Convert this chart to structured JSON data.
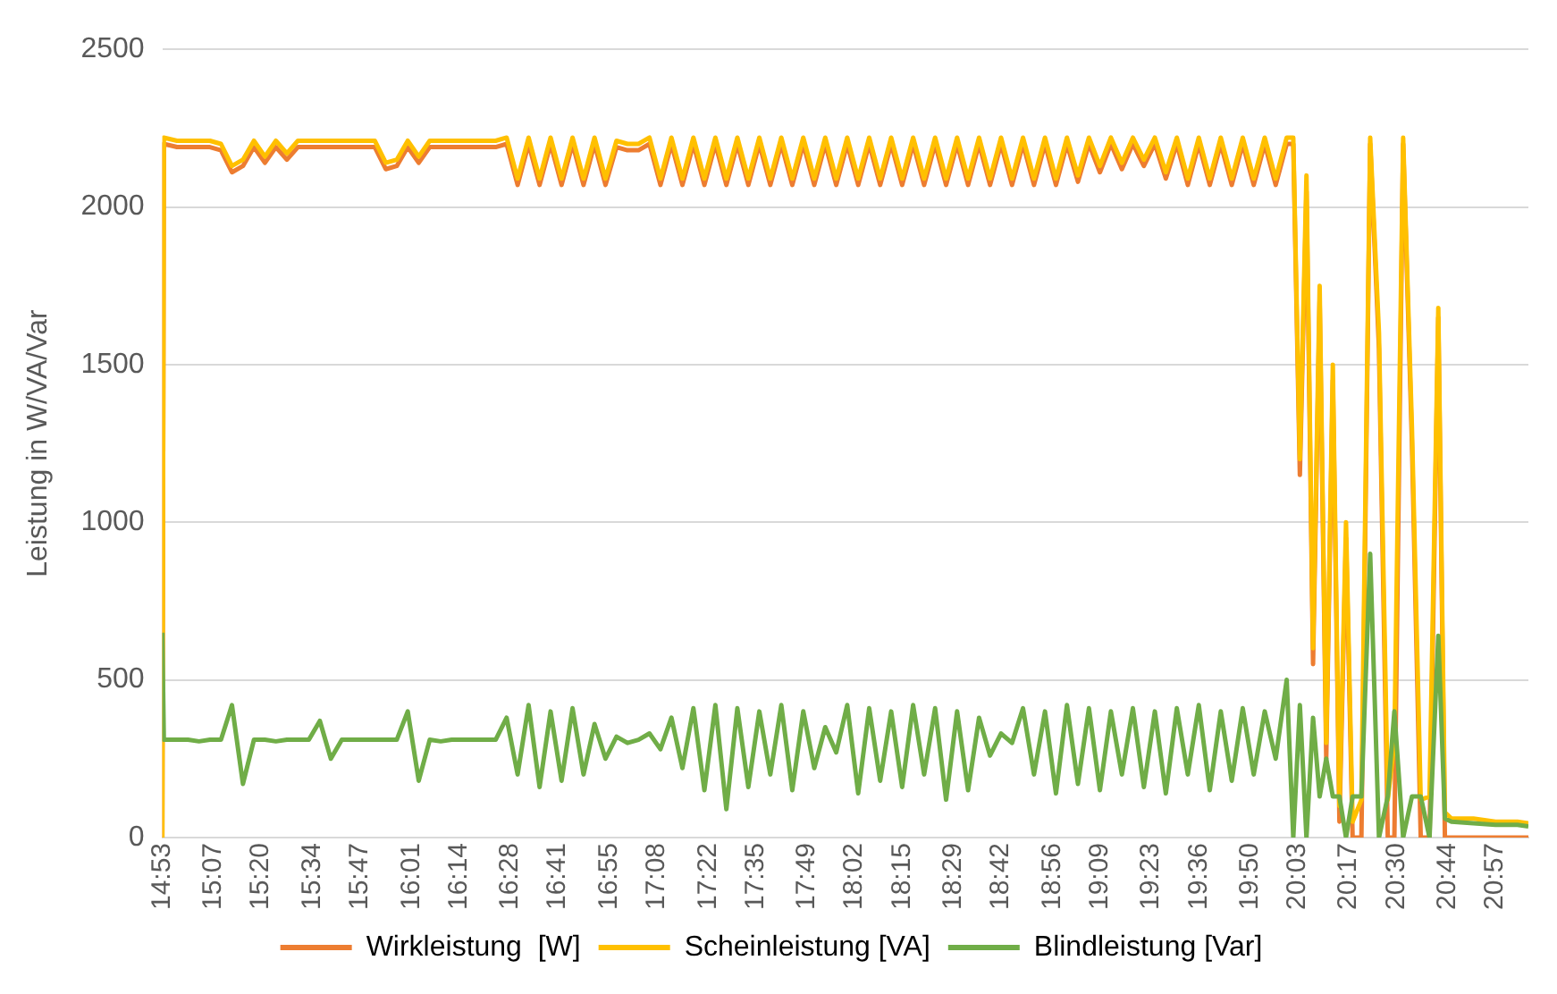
{
  "chart_data": {
    "type": "line",
    "ylabel": "Leistung in W/VA/Var",
    "x": [
      14.883,
      14.89,
      14.95,
      15.0,
      15.05,
      15.1,
      15.15,
      15.2,
      15.25,
      15.3,
      15.35,
      15.4,
      15.45,
      15.5,
      15.55,
      15.6,
      15.65,
      15.7,
      15.75,
      15.8,
      15.85,
      15.9,
      15.95,
      16.0,
      16.05,
      16.1,
      16.15,
      16.2,
      16.25,
      16.3,
      16.35,
      16.4,
      16.45,
      16.5,
      16.55,
      16.6,
      16.65,
      16.7,
      16.75,
      16.8,
      16.85,
      16.9,
      16.95,
      17.0,
      17.05,
      17.1,
      17.15,
      17.2,
      17.25,
      17.3,
      17.35,
      17.4,
      17.45,
      17.5,
      17.55,
      17.6,
      17.65,
      17.7,
      17.75,
      17.8,
      17.85,
      17.9,
      17.95,
      18.0,
      18.05,
      18.1,
      18.15,
      18.2,
      18.25,
      18.3,
      18.35,
      18.4,
      18.45,
      18.5,
      18.55,
      18.6,
      18.65,
      18.7,
      18.75,
      18.8,
      18.85,
      18.9,
      18.95,
      19.0,
      19.05,
      19.1,
      19.15,
      19.2,
      19.25,
      19.3,
      19.35,
      19.4,
      19.45,
      19.5,
      19.55,
      19.6,
      19.65,
      19.7,
      19.75,
      19.8,
      19.85,
      19.9,
      19.95,
      20.0,
      20.03,
      20.06,
      20.09,
      20.12,
      20.15,
      20.18,
      20.21,
      20.24,
      20.27,
      20.3,
      20.34,
      20.38,
      20.42,
      20.46,
      20.49,
      20.53,
      20.57,
      20.61,
      20.65,
      20.69,
      20.72,
      20.75,
      20.85,
      20.95,
      21.05,
      21.1
    ],
    "series": [
      {
        "name": "Wirkleistung  [W]",
        "color": "#ed7d31",
        "values": [
          0,
          2200,
          2190,
          2190,
          2190,
          2190,
          2180,
          2110,
          2130,
          2190,
          2140,
          2190,
          2150,
          2190,
          2190,
          2190,
          2190,
          2190,
          2190,
          2190,
          2190,
          2120,
          2130,
          2190,
          2140,
          2190,
          2190,
          2190,
          2190,
          2190,
          2190,
          2190,
          2200,
          2070,
          2200,
          2070,
          2200,
          2070,
          2200,
          2070,
          2200,
          2070,
          2190,
          2180,
          2180,
          2200,
          2070,
          2200,
          2070,
          2200,
          2070,
          2200,
          2070,
          2200,
          2070,
          2200,
          2070,
          2200,
          2070,
          2200,
          2070,
          2200,
          2070,
          2200,
          2070,
          2200,
          2070,
          2200,
          2070,
          2200,
          2070,
          2200,
          2070,
          2200,
          2070,
          2200,
          2070,
          2200,
          2070,
          2200,
          2070,
          2200,
          2070,
          2200,
          2080,
          2200,
          2110,
          2200,
          2120,
          2200,
          2130,
          2200,
          2090,
          2200,
          2070,
          2200,
          2070,
          2200,
          2070,
          2200,
          2070,
          2200,
          2070,
          2200,
          2200,
          1150,
          2050,
          550,
          1700,
          250,
          1450,
          50,
          950,
          0,
          0,
          2200,
          1550,
          0,
          0,
          2200,
          1250,
          0,
          0,
          1650,
          0,
          0,
          0,
          0,
          0,
          0
        ]
      },
      {
        "name": "Scheinleistung [VA]",
        "color": "#ffc000",
        "values": [
          0,
          2220,
          2210,
          2210,
          2210,
          2210,
          2200,
          2130,
          2150,
          2210,
          2160,
          2210,
          2170,
          2210,
          2210,
          2210,
          2210,
          2210,
          2210,
          2210,
          2210,
          2140,
          2150,
          2210,
          2160,
          2210,
          2210,
          2210,
          2210,
          2210,
          2210,
          2210,
          2220,
          2090,
          2220,
          2090,
          2220,
          2090,
          2220,
          2090,
          2220,
          2090,
          2210,
          2200,
          2200,
          2220,
          2090,
          2220,
          2090,
          2220,
          2090,
          2220,
          2090,
          2220,
          2090,
          2220,
          2090,
          2220,
          2090,
          2220,
          2090,
          2220,
          2090,
          2220,
          2090,
          2220,
          2090,
          2220,
          2090,
          2220,
          2090,
          2220,
          2090,
          2220,
          2090,
          2220,
          2090,
          2220,
          2090,
          2220,
          2090,
          2220,
          2090,
          2220,
          2100,
          2220,
          2130,
          2220,
          2140,
          2220,
          2150,
          2220,
          2110,
          2220,
          2090,
          2220,
          2090,
          2220,
          2090,
          2220,
          2090,
          2220,
          2090,
          2220,
          2220,
          1200,
          2100,
          600,
          1750,
          300,
          1500,
          100,
          1000,
          50,
          120,
          2220,
          1600,
          120,
          300,
          2220,
          1300,
          120,
          130,
          1680,
          80,
          60,
          60,
          50,
          50,
          45
        ]
      },
      {
        "name": "Blindleistung [Var]",
        "color": "#70ad47",
        "values": [
          650,
          310,
          310,
          310,
          305,
          310,
          310,
          420,
          170,
          310,
          310,
          305,
          310,
          310,
          310,
          370,
          250,
          310,
          310,
          310,
          310,
          310,
          310,
          400,
          180,
          310,
          305,
          310,
          310,
          310,
          310,
          310,
          380,
          200,
          420,
          160,
          400,
          180,
          410,
          200,
          360,
          250,
          320,
          300,
          310,
          330,
          280,
          380,
          220,
          410,
          150,
          420,
          90,
          410,
          160,
          400,
          200,
          420,
          150,
          400,
          220,
          350,
          270,
          420,
          140,
          410,
          180,
          400,
          160,
          420,
          200,
          410,
          120,
          400,
          150,
          380,
          260,
          330,
          300,
          410,
          200,
          400,
          140,
          420,
          170,
          410,
          150,
          400,
          200,
          410,
          160,
          400,
          140,
          410,
          200,
          420,
          150,
          400,
          180,
          410,
          200,
          400,
          250,
          500,
          0,
          420,
          0,
          380,
          130,
          250,
          130,
          130,
          0,
          130,
          130,
          900,
          0,
          130,
          400,
          0,
          130,
          130,
          0,
          640,
          60,
          50,
          45,
          40,
          40,
          35
        ]
      }
    ],
    "xlim": [
      14.883,
      21.1
    ],
    "xticks": [
      {
        "value": 14.883,
        "label": "14:53"
      },
      {
        "value": 15.117,
        "label": "15:07"
      },
      {
        "value": 15.333,
        "label": "15:20"
      },
      {
        "value": 15.567,
        "label": "15:34"
      },
      {
        "value": 15.783,
        "label": "15:47"
      },
      {
        "value": 16.017,
        "label": "16:01"
      },
      {
        "value": 16.233,
        "label": "16:14"
      },
      {
        "value": 16.467,
        "label": "16:28"
      },
      {
        "value": 16.683,
        "label": "16:41"
      },
      {
        "value": 16.917,
        "label": "16:55"
      },
      {
        "value": 17.133,
        "label": "17:08"
      },
      {
        "value": 17.367,
        "label": "17:22"
      },
      {
        "value": 17.583,
        "label": "17:35"
      },
      {
        "value": 17.817,
        "label": "17:49"
      },
      {
        "value": 18.033,
        "label": "18:02"
      },
      {
        "value": 18.25,
        "label": "18:15"
      },
      {
        "value": 18.483,
        "label": "18:29"
      },
      {
        "value": 18.7,
        "label": "18:42"
      },
      {
        "value": 18.933,
        "label": "18:56"
      },
      {
        "value": 19.15,
        "label": "19:09"
      },
      {
        "value": 19.383,
        "label": "19:23"
      },
      {
        "value": 19.6,
        "label": "19:36"
      },
      {
        "value": 19.833,
        "label": "19:50"
      },
      {
        "value": 20.05,
        "label": "20:03"
      },
      {
        "value": 20.283,
        "label": "20:17"
      },
      {
        "value": 20.5,
        "label": "20:30"
      },
      {
        "value": 20.733,
        "label": "20:44"
      },
      {
        "value": 20.95,
        "label": "20:57"
      }
    ],
    "ylim": [
      0,
      2500
    ],
    "yticks": [
      0,
      500,
      1000,
      1500,
      2000,
      2500
    ],
    "grid": "y",
    "legend": "bottom",
    "marker": "none",
    "line_style": "solid"
  }
}
